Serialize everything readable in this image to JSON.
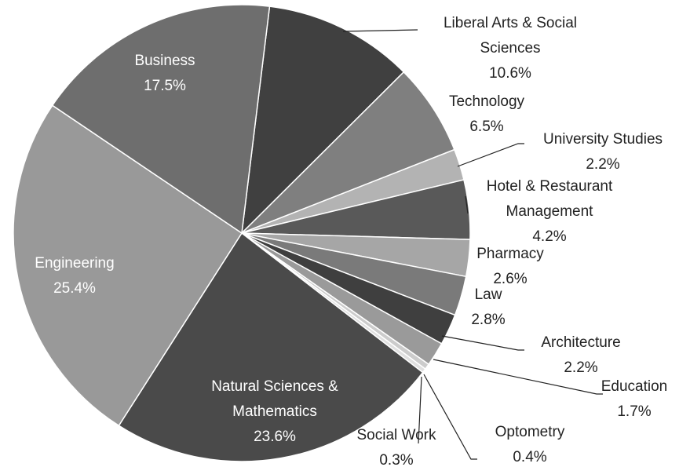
{
  "chart_data": {
    "type": "pie",
    "categories": [
      "Liberal Arts & Social Sciences",
      "Technology",
      "University Studies",
      "Hotel & Restaurant Management",
      "Pharmacy",
      "Law",
      "Architecture",
      "Education",
      "Optometry",
      "Social Work",
      "Natural Sciences & Mathematics",
      "Engineering",
      "Business"
    ],
    "values": [
      10.6,
      6.5,
      2.2,
      4.2,
      2.6,
      2.8,
      2.2,
      1.7,
      0.4,
      0.3,
      23.6,
      25.4,
      17.5
    ],
    "value_labels": [
      "10.6%",
      "6.5%",
      "2.2%",
      "4.2%",
      "2.6%",
      "2.8%",
      "2.2%",
      "1.7%",
      "0.4%",
      "0.3%",
      "23.6%",
      "25.4%",
      "17.5%"
    ],
    "colors": [
      "#404040",
      "#7f7f7f",
      "#b3b3b3",
      "#595959",
      "#a6a6a6",
      "#7a7a7a",
      "#3f3f3f",
      "#9a9a9a",
      "#cccccc",
      "#e0e0e0",
      "#4a4a4a",
      "#999999",
      "#6e6e6e"
    ]
  }
}
